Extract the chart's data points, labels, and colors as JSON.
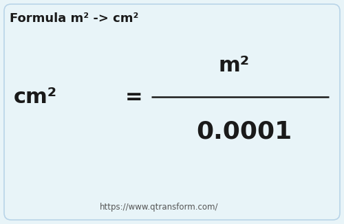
{
  "bg_color": "#e8f4f8",
  "border_color": "#b8d4e8",
  "title": "Formula m² -> cm²",
  "numerator": "m²",
  "denominator_left": "cm²",
  "equals_sign": "=",
  "value": "0.0001",
  "url": "https://www.qtransform.com/",
  "title_fontsize": 13,
  "main_fontsize": 22,
  "value_fontsize": 26,
  "url_fontsize": 8.5,
  "text_color": "#1a1a1a",
  "url_color": "#555555",
  "line_color": "#1a1a1a"
}
